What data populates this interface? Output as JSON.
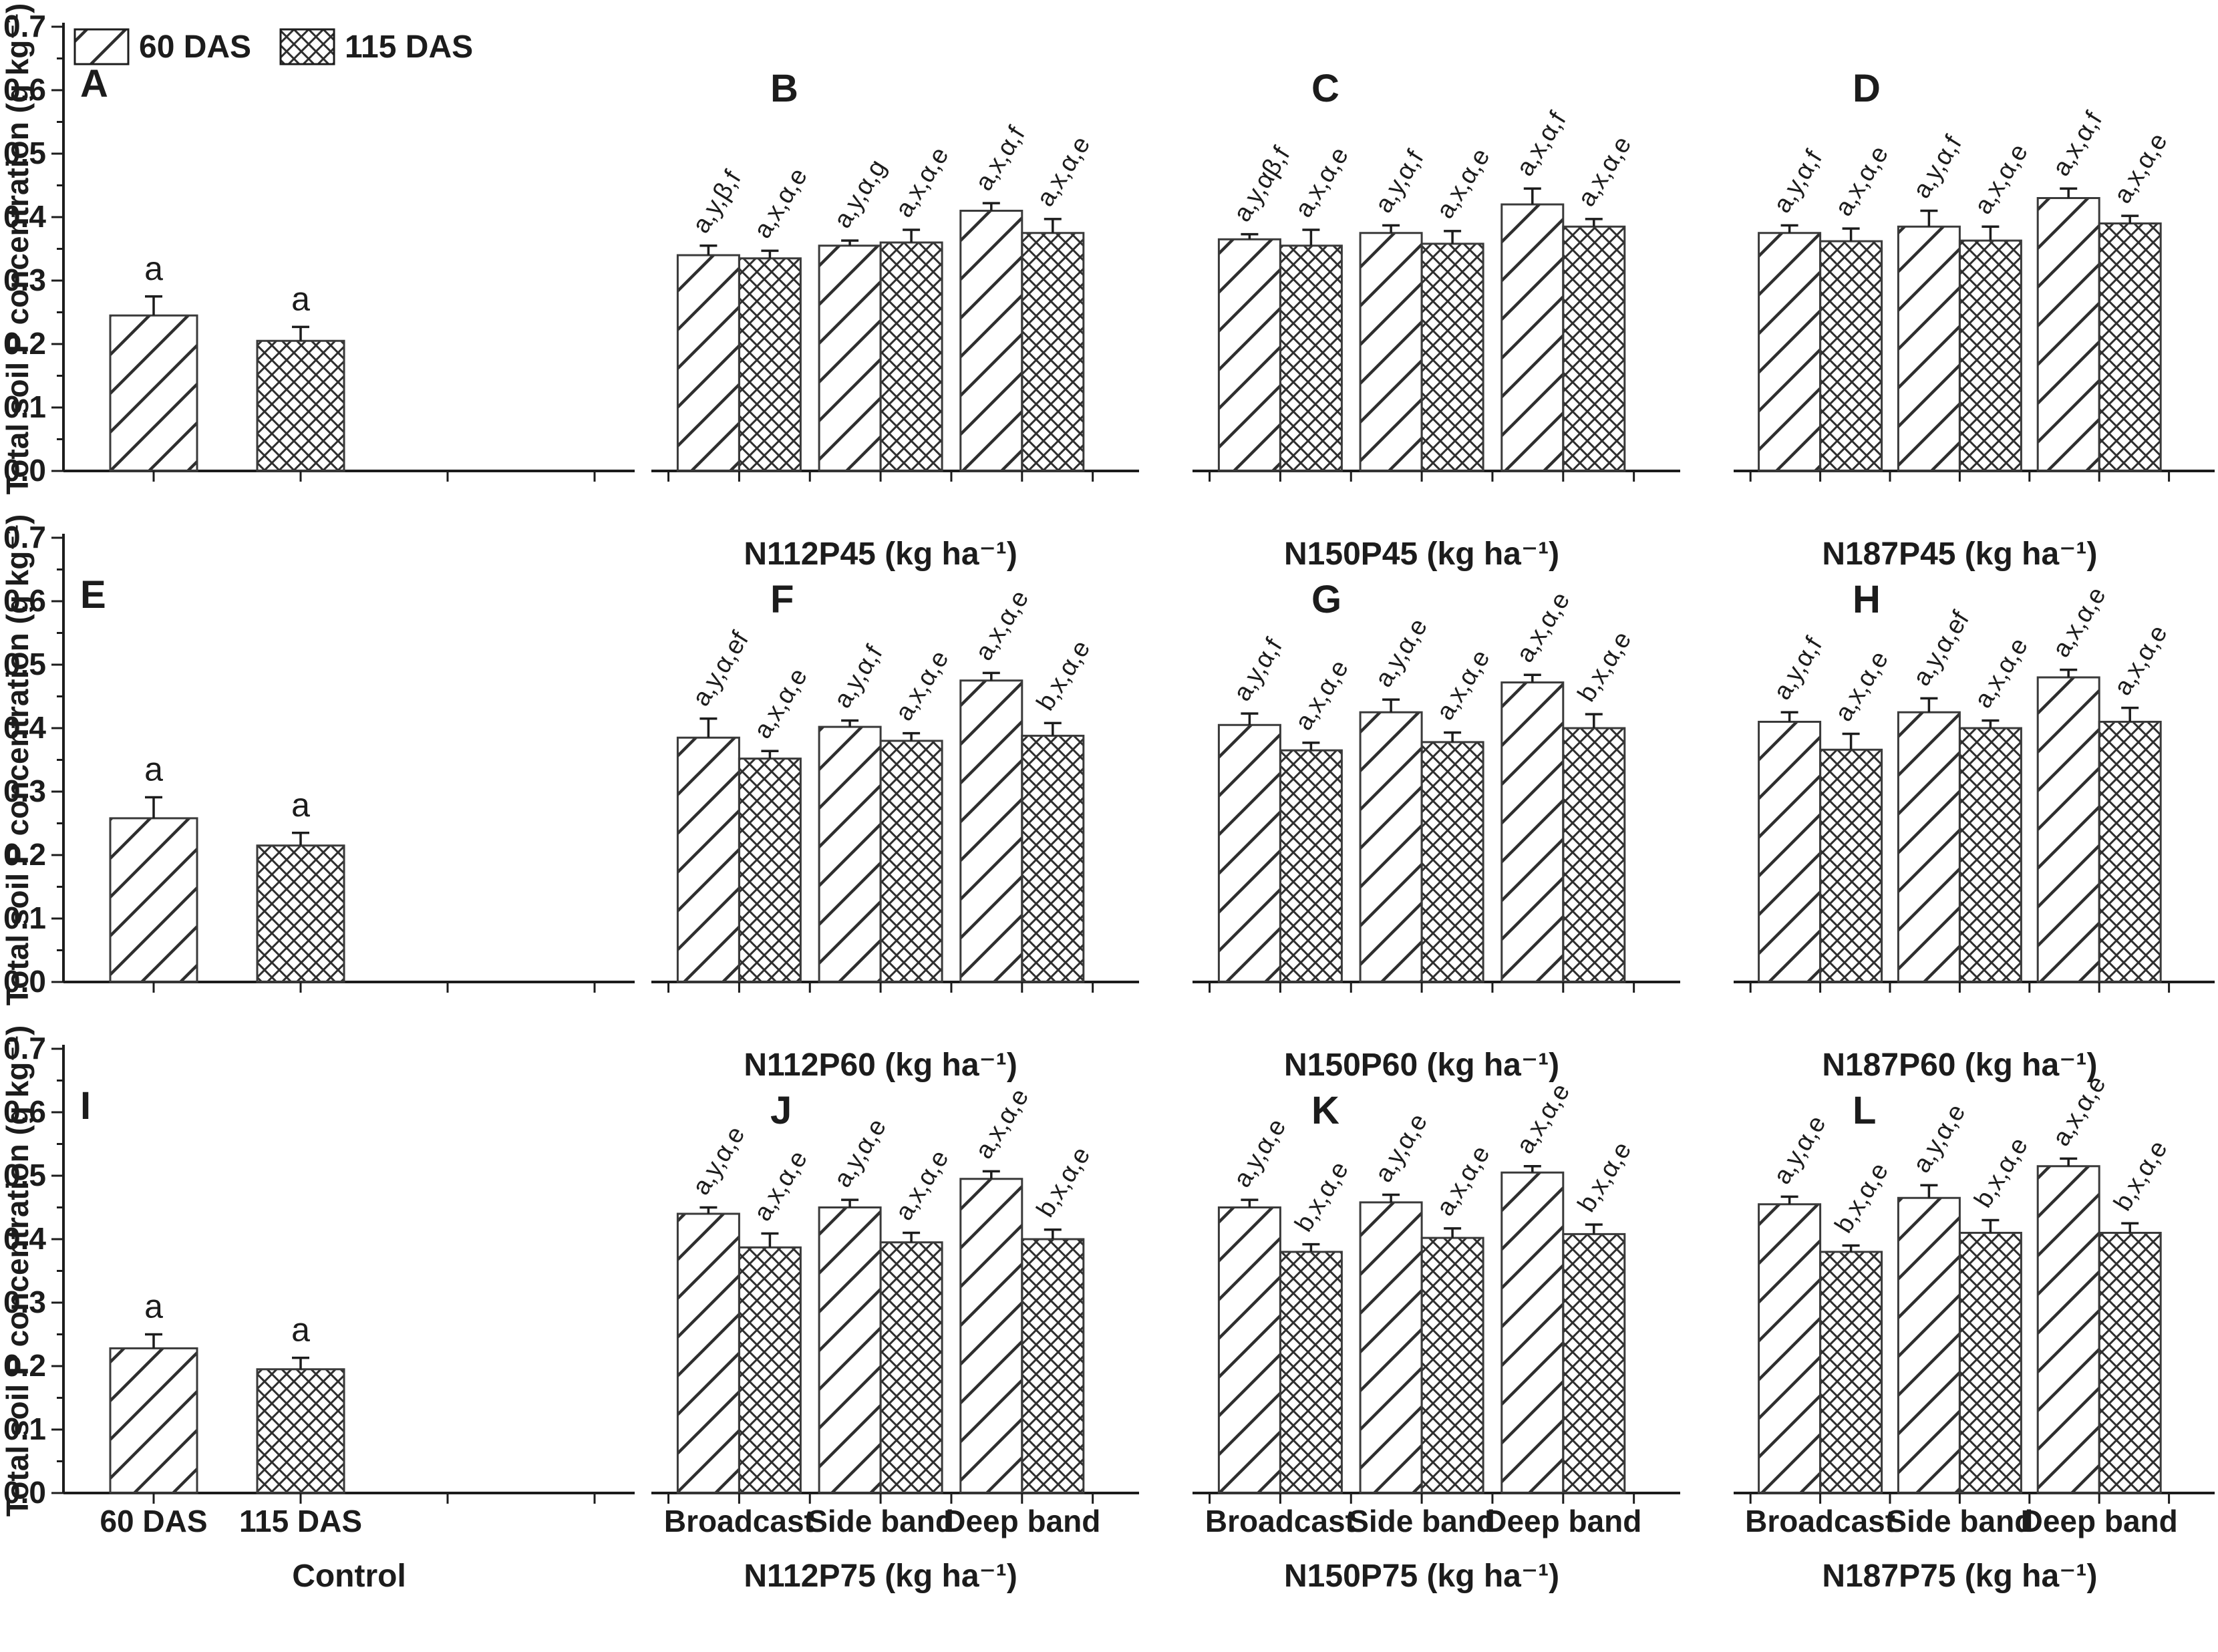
{
  "figure": {
    "background": "#ffffff",
    "ink_color": "#1c1c1c",
    "bar_edge_color": "#3a3a3a",
    "hatch_color": "#2e2e2e"
  },
  "chart_data": {
    "type": "bar",
    "title": "",
    "ylabel": "Total soil P concentration (g kg⁻¹)",
    "ylim": [
      0.0,
      0.7
    ],
    "yticks": [
      "0.0",
      "0.1",
      "0.2",
      "0.3",
      "0.4",
      "0.5",
      "0.6",
      "0.7"
    ],
    "grid": false,
    "legend_position": "top-left",
    "legend": [
      {
        "label": "60 DAS",
        "pattern": "diagonal-hatch"
      },
      {
        "label": "115 DAS",
        "pattern": "crosshatch"
      }
    ],
    "control_categories": [
      "60 DAS",
      "115 DAS"
    ],
    "treatment_categories": [
      "Broadcast",
      "Side band",
      "Deep band"
    ],
    "rows": [
      {
        "show_categories": false,
        "panels": [
          {
            "letter": "A",
            "kind": "control",
            "group_label": "",
            "bars": [
              {
                "series": "60 DAS",
                "value": 0.245,
                "err": 0.03,
                "note": "a"
              },
              {
                "series": "115 DAS",
                "value": 0.205,
                "err": 0.022,
                "note": "a"
              }
            ]
          },
          {
            "letter": "B",
            "kind": "treatment",
            "group_label": "N112P45 (kg ha⁻¹)",
            "pairs": [
              {
                "category": "Broadcast",
                "v60": 0.34,
                "e60": 0.015,
                "n60": "a,y,β,f",
                "v115": 0.335,
                "e115": 0.012,
                "n115": "a,x,α,e"
              },
              {
                "category": "Side band",
                "v60": 0.355,
                "e60": 0.008,
                "n60": "a,y,α,g",
                "v115": 0.36,
                "e115": 0.02,
                "n115": "a,x,α,e"
              },
              {
                "category": "Deep band",
                "v60": 0.41,
                "e60": 0.012,
                "n60": "a,x,α,f",
                "v115": 0.375,
                "e115": 0.022,
                "n115": "a,x,α,e"
              }
            ]
          },
          {
            "letter": "C",
            "kind": "treatment",
            "group_label": "N150P45 (kg ha⁻¹)",
            "pairs": [
              {
                "category": "Broadcast",
                "v60": 0.365,
                "e60": 0.008,
                "n60": "a,y,αβ,f",
                "v115": 0.355,
                "e115": 0.025,
                "n115": "a,x,α,e"
              },
              {
                "category": "Side band",
                "v60": 0.375,
                "e60": 0.012,
                "n60": "a,y,α,f",
                "v115": 0.358,
                "e115": 0.02,
                "n115": "a,x,α,e"
              },
              {
                "category": "Deep band",
                "v60": 0.42,
                "e60": 0.025,
                "n60": "a,x,α,f",
                "v115": 0.385,
                "e115": 0.012,
                "n115": "a,x,α,e"
              }
            ]
          },
          {
            "letter": "D",
            "kind": "treatment",
            "group_label": "N187P45 (kg ha⁻¹)",
            "pairs": [
              {
                "category": "Broadcast",
                "v60": 0.375,
                "e60": 0.012,
                "n60": "a,y,α,f",
                "v115": 0.362,
                "e115": 0.02,
                "n115": "a,x,α,e"
              },
              {
                "category": "Side band",
                "v60": 0.385,
                "e60": 0.025,
                "n60": "a,y,α,f",
                "v115": 0.363,
                "e115": 0.022,
                "n115": "a,x,α,e"
              },
              {
                "category": "Deep band",
                "v60": 0.43,
                "e60": 0.015,
                "n60": "a,x,α,f",
                "v115": 0.39,
                "e115": 0.012,
                "n115": "a,x,α,e"
              }
            ]
          }
        ]
      },
      {
        "show_categories": false,
        "panels": [
          {
            "letter": "E",
            "kind": "control",
            "group_label": "",
            "bars": [
              {
                "series": "60 DAS",
                "value": 0.258,
                "err": 0.033,
                "note": "a"
              },
              {
                "series": "115 DAS",
                "value": 0.215,
                "err": 0.02,
                "note": "a"
              }
            ]
          },
          {
            "letter": "F",
            "kind": "treatment",
            "group_label": "N112P60 (kg ha⁻¹)",
            "pairs": [
              {
                "category": "Broadcast",
                "v60": 0.385,
                "e60": 0.03,
                "n60": "a,y,α,ef",
                "v115": 0.352,
                "e115": 0.012,
                "n115": "a,x,α,e"
              },
              {
                "category": "Side band",
                "v60": 0.402,
                "e60": 0.01,
                "n60": "a,y,α,f",
                "v115": 0.38,
                "e115": 0.012,
                "n115": "a,x,α,e"
              },
              {
                "category": "Deep band",
                "v60": 0.475,
                "e60": 0.012,
                "n60": "a,x,α,e",
                "v115": 0.388,
                "e115": 0.02,
                "n115": "b,x,α,e"
              }
            ]
          },
          {
            "letter": "G",
            "kind": "treatment",
            "group_label": "N150P60 (kg ha⁻¹)",
            "pairs": [
              {
                "category": "Broadcast",
                "v60": 0.405,
                "e60": 0.018,
                "n60": "a,y,α,f",
                "v115": 0.365,
                "e115": 0.012,
                "n115": "a,x,α,e"
              },
              {
                "category": "Side band",
                "v60": 0.425,
                "e60": 0.02,
                "n60": "a,y,α,e",
                "v115": 0.378,
                "e115": 0.015,
                "n115": "a,x,α,e"
              },
              {
                "category": "Deep band",
                "v60": 0.472,
                "e60": 0.012,
                "n60": "a,x,α,e",
                "v115": 0.4,
                "e115": 0.022,
                "n115": "b,x,α,e"
              }
            ]
          },
          {
            "letter": "H",
            "kind": "treatment",
            "group_label": "N187P60 (kg ha⁻¹)",
            "pairs": [
              {
                "category": "Broadcast",
                "v60": 0.41,
                "e60": 0.015,
                "n60": "a,y,α,f",
                "v115": 0.366,
                "e115": 0.025,
                "n115": "a,x,α,e"
              },
              {
                "category": "Side band",
                "v60": 0.425,
                "e60": 0.022,
                "n60": "a,y,α,ef",
                "v115": 0.4,
                "e115": 0.012,
                "n115": "a,x,α,e"
              },
              {
                "category": "Deep band",
                "v60": 0.48,
                "e60": 0.012,
                "n60": "a,x,α,e",
                "v115": 0.41,
                "e115": 0.022,
                "n115": "a,x,α,e"
              }
            ]
          }
        ]
      },
      {
        "show_categories": true,
        "panels": [
          {
            "letter": "I",
            "kind": "control",
            "group_label": "Control",
            "bars": [
              {
                "series": "60 DAS",
                "value": 0.228,
                "err": 0.022,
                "note": "a"
              },
              {
                "series": "115 DAS",
                "value": 0.195,
                "err": 0.018,
                "note": "a"
              }
            ]
          },
          {
            "letter": "J",
            "kind": "treatment",
            "group_label": "N112P75 (kg ha⁻¹)",
            "pairs": [
              {
                "category": "Broadcast",
                "v60": 0.44,
                "e60": 0.01,
                "n60": "a,y,α,e",
                "v115": 0.387,
                "e115": 0.022,
                "n115": "a,x,α,e"
              },
              {
                "category": "Side band",
                "v60": 0.45,
                "e60": 0.012,
                "n60": "a,y,α,e",
                "v115": 0.395,
                "e115": 0.015,
                "n115": "a,x,α,e"
              },
              {
                "category": "Deep band",
                "v60": 0.495,
                "e60": 0.012,
                "n60": "a,x,α,e",
                "v115": 0.4,
                "e115": 0.015,
                "n115": "b,x,α,e"
              }
            ]
          },
          {
            "letter": "K",
            "kind": "treatment",
            "group_label": "N150P75 (kg ha⁻¹)",
            "pairs": [
              {
                "category": "Broadcast",
                "v60": 0.45,
                "e60": 0.012,
                "n60": "a,y,α,e",
                "v115": 0.38,
                "e115": 0.012,
                "n115": "b,x,α,e"
              },
              {
                "category": "Side band",
                "v60": 0.458,
                "e60": 0.012,
                "n60": "a,y,α,e",
                "v115": 0.402,
                "e115": 0.015,
                "n115": "a,x,α,e"
              },
              {
                "category": "Deep band",
                "v60": 0.505,
                "e60": 0.01,
                "n60": "a,x,α,e",
                "v115": 0.408,
                "e115": 0.015,
                "n115": "b,x,α,e"
              }
            ]
          },
          {
            "letter": "L",
            "kind": "treatment",
            "group_label": "N187P75 (kg ha⁻¹)",
            "pairs": [
              {
                "category": "Broadcast",
                "v60": 0.455,
                "e60": 0.012,
                "n60": "a,y,α,e",
                "v115": 0.38,
                "e115": 0.01,
                "n115": "b,x,α,e"
              },
              {
                "category": "Side band",
                "v60": 0.465,
                "e60": 0.02,
                "n60": "a,y,α,e",
                "v115": 0.41,
                "e115": 0.02,
                "n115": "b,x,α,e"
              },
              {
                "category": "Deep band",
                "v60": 0.515,
                "e60": 0.012,
                "n60": "a,x,α,e",
                "v115": 0.41,
                "e115": 0.015,
                "n115": "b,x,α,e"
              }
            ]
          }
        ]
      }
    ]
  }
}
